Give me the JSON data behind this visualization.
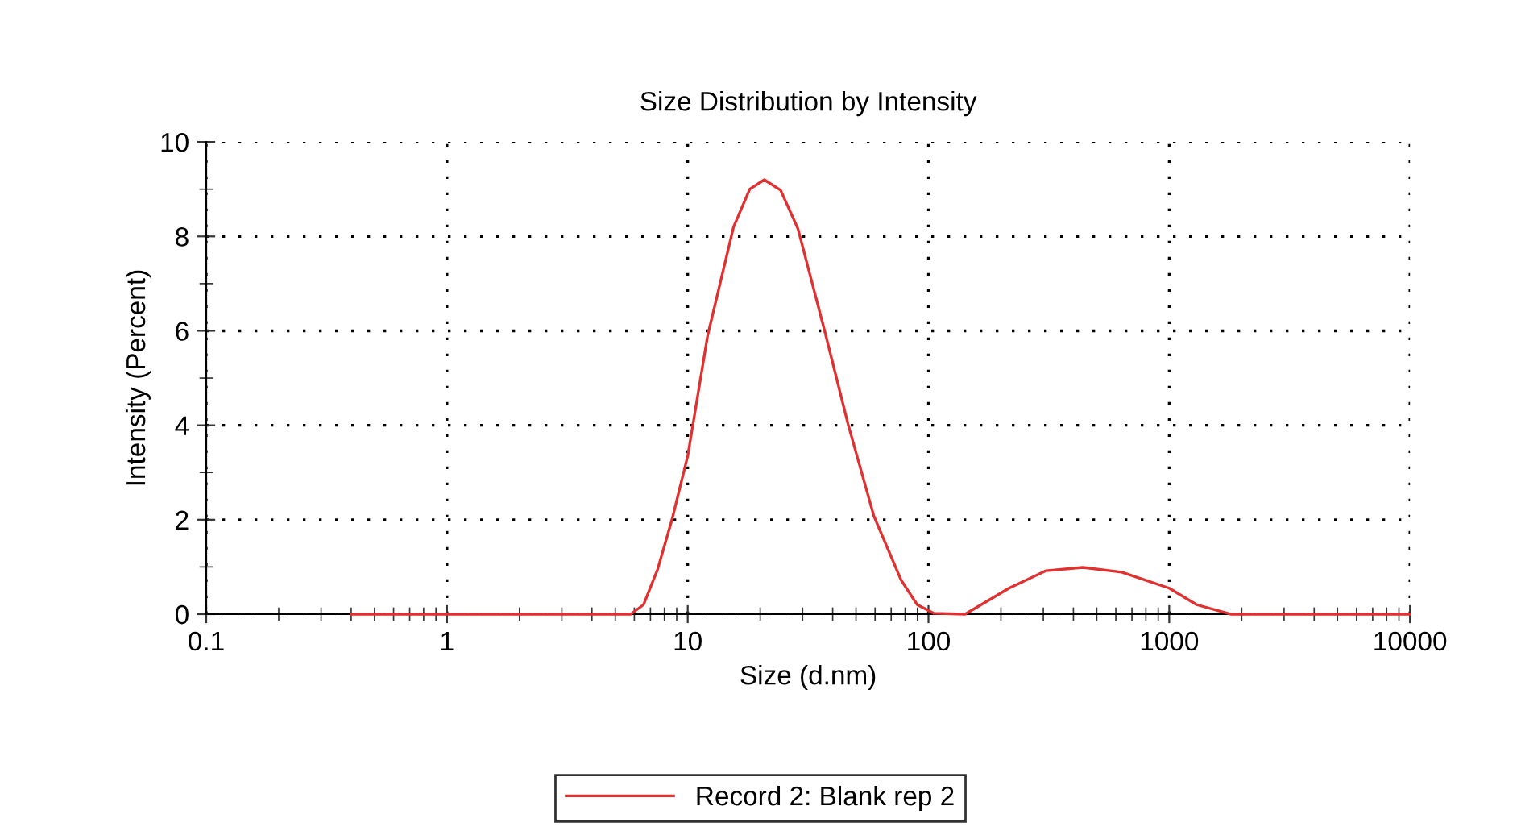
{
  "chart_data": {
    "type": "line",
    "title": "Size Distribution by Intensity",
    "xlabel": "Size (d.nm)",
    "ylabel": "Intensity (Percent)",
    "log": "x",
    "xlim": [
      0.1,
      10000
    ],
    "xticks": [
      0.1,
      1,
      10,
      100,
      1000,
      10000
    ],
    "ylim": [
      0,
      10
    ],
    "yticks": [
      0,
      2,
      4,
      6,
      8,
      10
    ],
    "grid": true,
    "legend": "bottom",
    "marker": "none",
    "line_style": "solid",
    "series": [
      {
        "name": "Record 2: Blank rep 2",
        "color": "#e03030",
        "x": [
          0.4,
          1,
          3,
          5.8,
          6.55,
          7.5,
          8.6,
          10,
          12.1,
          15.5,
          18.1,
          20.8,
          24.3,
          28.7,
          37.3,
          46.3,
          59.3,
          77,
          89.8,
          105,
          142,
          216,
          308,
          438,
          635,
          1000,
          1300,
          1800,
          3000,
          10000
        ],
        "values": [
          0,
          0,
          0,
          0,
          0.2,
          0.95,
          2.0,
          3.35,
          5.9,
          8.2,
          9.0,
          9.2,
          8.98,
          8.16,
          5.94,
          4.03,
          2.08,
          0.72,
          0.2,
          0.02,
          0,
          0.55,
          0.92,
          0.99,
          0.89,
          0.55,
          0.2,
          0,
          0,
          0
        ]
      }
    ]
  }
}
